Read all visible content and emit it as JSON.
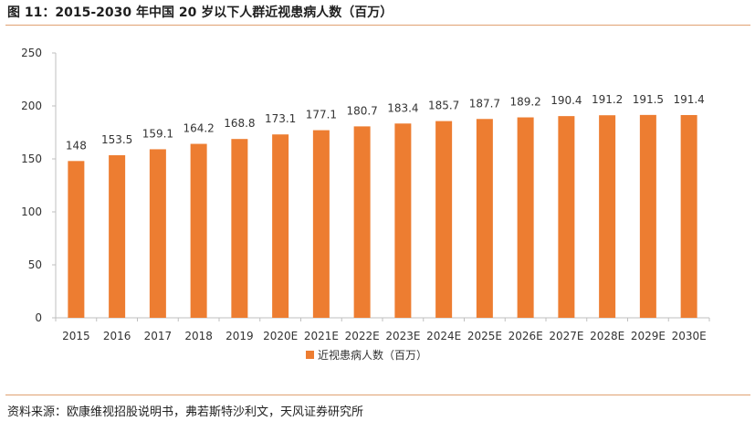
{
  "header": {
    "title": "图 11：2015-2030 年中国 20 岁以下人群近视患病人数（百万）"
  },
  "footer": {
    "source": "资料来源：欧康维视招股说明书，弗若斯特沙利文，天风证券研究所"
  },
  "colors": {
    "bar": "#ED7D31",
    "rule": "#E0A172"
  },
  "chart_data": {
    "type": "bar",
    "title": "",
    "xlabel": "",
    "ylabel": "",
    "categories": [
      "2015",
      "2016",
      "2017",
      "2018",
      "2019",
      "2020E",
      "2021E",
      "2022E",
      "2023E",
      "2024E",
      "2025E",
      "2026E",
      "2027E",
      "2028E",
      "2029E",
      "2030E"
    ],
    "series": [
      {
        "name": "近视患病人数（百万）",
        "values": [
          148,
          153.5,
          159.1,
          164.2,
          168.8,
          173.1,
          177.1,
          180.7,
          183.4,
          185.7,
          187.7,
          189.2,
          190.4,
          191.2,
          191.5,
          191.4
        ]
      }
    ],
    "ylim": [
      0,
      250
    ],
    "yticks": [
      0,
      50,
      100,
      150,
      200,
      250
    ],
    "grid": false,
    "legend": "bottom"
  }
}
